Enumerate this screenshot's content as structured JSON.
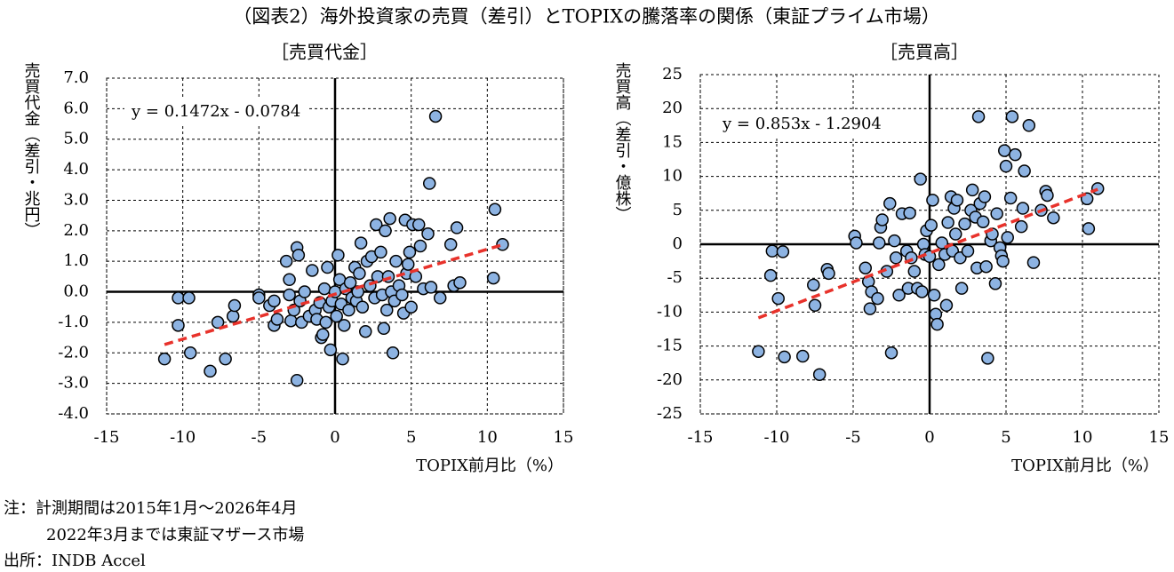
{
  "title": "（図表2）海外投資家の売買（差引）とTOPIXの騰落率の関係（東証プライム市場）",
  "notes": [
    "注：計測期間は2015年1月～2026年4月",
    "2022年3月までは東証マザース市場"
  ],
  "source": "出所：INDB Accel",
  "chart_data": [
    {
      "type": "scatter",
      "subtitle": "［売買代金］",
      "y_label": "売買代金（差引・兆円）",
      "x_label": "TOPIX前月比（%）",
      "color": "#8db3e2",
      "edge_color": "#000000",
      "grid": true,
      "xlim": [
        -15,
        15
      ],
      "xticks": [
        -15,
        -10,
        -5,
        0,
        5,
        10,
        15
      ],
      "ylim": [
        -4,
        7
      ],
      "yticks": [
        {
          "value": -4,
          "label": "-4.0"
        },
        {
          "value": -3,
          "label": "-3.0"
        },
        {
          "value": -2,
          "label": "-2.0"
        },
        {
          "value": -1,
          "label": "-1.0"
        },
        {
          "value": 0,
          "label": "0.0"
        },
        {
          "value": 1,
          "label": "1.0"
        },
        {
          "value": 2,
          "label": "2.0"
        },
        {
          "value": 3,
          "label": "3.0"
        },
        {
          "value": 4,
          "label": "4.0"
        },
        {
          "value": 5,
          "label": "5.0"
        },
        {
          "value": 6,
          "label": "6.0"
        },
        {
          "value": 7,
          "label": "7.0"
        }
      ],
      "trend": {
        "label": "y = 0.1472x - 0.0784",
        "slope": 0.1472,
        "intercept": -0.0784,
        "x_range": [
          -11.2,
          11
        ],
        "color": "#e8322b"
      },
      "x": [
        -11.2,
        -10.3,
        -10.3,
        -9.6,
        -9.5,
        -8.2,
        -7.7,
        -7.2,
        -6.7,
        -6.6,
        -5,
        -5,
        -4.3,
        -4,
        -4,
        -3.8,
        -3.2,
        -3,
        -3,
        -2.9,
        -2.7,
        -2.5,
        -2.4,
        -2.5,
        -2.3,
        -2.2,
        -2,
        -1.7,
        -1.5,
        -1.3,
        -1.2,
        -1,
        -0.9,
        -0.8,
        -0.7,
        -0.6,
        -0.5,
        -0.4,
        -0.3,
        -0.2,
        0,
        0.1,
        0.2,
        0.3,
        0.4,
        0.5,
        0.6,
        0.7,
        0.9,
        1,
        1.1,
        1.3,
        1.4,
        1.5,
        1.6,
        1.7,
        1.8,
        2,
        2.1,
        2.3,
        2.4,
        2.6,
        2.7,
        2.8,
        3,
        3.1,
        3.2,
        3.3,
        3.4,
        3.5,
        3.6,
        3.7,
        3.8,
        3.9,
        4,
        4.2,
        4.4,
        4.5,
        4.6,
        4.7,
        4.8,
        4.9,
        5,
        5.1,
        5.3,
        5.5,
        5.6,
        5.8,
        6.1,
        6.2,
        6.3,
        6.6,
        6.9,
        7.6,
        7.8,
        8,
        8.2,
        10.4,
        10.5,
        11
      ],
      "y": [
        -2.2,
        -0.2,
        -1.1,
        -0.2,
        -2,
        -2.6,
        -1,
        -2.2,
        -0.8,
        -0.45,
        -0.1,
        -0.2,
        -0.45,
        -0.3,
        -1.1,
        -0.9,
        1,
        0.4,
        -0.1,
        -0.95,
        -0.6,
        1.45,
        1.2,
        -2.9,
        -0.3,
        -1,
        0,
        -0.8,
        0.7,
        -0.6,
        -0.9,
        -0.35,
        -1.5,
        -1.4,
        0.1,
        -1,
        0.8,
        -0.5,
        -1.9,
        -0.3,
        0,
        -0.8,
        1.2,
        0.4,
        -0.4,
        -2.2,
        -1.1,
        0.1,
        -0.6,
        0.3,
        -0.2,
        0.8,
        -0.3,
        0,
        0.6,
        1.6,
        -0.5,
        -1.3,
        1,
        0.2,
        1.15,
        -0.2,
        2.2,
        0.5,
        1.3,
        -0.1,
        -1.2,
        2,
        -0.6,
        0.5,
        2.4,
        0,
        -2,
        -0.3,
        1,
        0.2,
        -0.1,
        -0.7,
        2.35,
        0.6,
        0.9,
        1.3,
        -0.5,
        2.2,
        0.5,
        2.2,
        1.5,
        0.1,
        1.9,
        3.55,
        0.15,
        5.75,
        -0.2,
        1.55,
        0.2,
        2.1,
        0.3,
        0.45,
        2.7,
        1.55
      ]
    },
    {
      "type": "scatter",
      "subtitle": "［売買高］",
      "y_label": "売買高（差引・億株）",
      "x_label": "TOPIX前月比（%）",
      "color": "#8db3e2",
      "edge_color": "#000000",
      "grid": true,
      "xlim": [
        -15,
        15
      ],
      "xticks": [
        -15,
        -10,
        -5,
        0,
        5,
        10,
        15
      ],
      "ylim": [
        -25,
        25
      ],
      "yticks": [
        -25,
        -20,
        -15,
        -10,
        -5,
        0,
        5,
        10,
        15,
        20,
        25
      ],
      "trend": {
        "label": "y = 0.853x - 1.2904",
        "slope": 0.853,
        "intercept": -1.2904,
        "x_range": [
          -11.2,
          11
        ],
        "color": "#e8322b"
      },
      "x": [
        -11.2,
        -10.4,
        -10.3,
        -9.9,
        -9.6,
        -9.5,
        -8.3,
        -7.6,
        -7.5,
        -7.2,
        -6.7,
        -6.6,
        -4.9,
        -4.8,
        -4.2,
        -4,
        -3.9,
        -3.8,
        -3.4,
        -3.3,
        -3.2,
        -3.1,
        -2.8,
        -2.6,
        -2.5,
        -2.3,
        -2.2,
        -2,
        -1.8,
        -1.5,
        -1.4,
        -1.3,
        -1.2,
        -1,
        -0.8,
        -0.6,
        -0.5,
        -0.4,
        -0.3,
        -0.2,
        0,
        0.1,
        0.2,
        0.3,
        0.4,
        0.5,
        0.6,
        0.8,
        1,
        1.1,
        1.2,
        1.4,
        1.5,
        1.6,
        1.7,
        1.8,
        2,
        2.1,
        2.3,
        2.5,
        2.7,
        2.8,
        3,
        3.1,
        3.2,
        3.3,
        3.5,
        3.6,
        3.7,
        3.8,
        4,
        4.1,
        4.3,
        4.4,
        4.6,
        4.7,
        4.8,
        4.9,
        5,
        5.1,
        5.3,
        5.4,
        5.6,
        6,
        6.1,
        6.2,
        6.5,
        6.8,
        7.3,
        7.6,
        7.7,
        8.1,
        10.3,
        10.4,
        11
      ],
      "y": [
        -15.8,
        -4.6,
        -1,
        -8,
        -1.1,
        -16.6,
        -16.5,
        -6,
        -9,
        -19.2,
        -3.7,
        -4.3,
        1.2,
        0.2,
        -3.5,
        -5.5,
        -9.5,
        -7,
        -8,
        0.2,
        2.5,
        3.6,
        -4,
        6,
        -16,
        0.5,
        -2,
        -7.5,
        4.5,
        -1,
        -6.5,
        4.6,
        -2,
        -4,
        -6.5,
        9.6,
        -7,
        0,
        -1.5,
        2,
        -1.8,
        2.8,
        6.5,
        -7.5,
        -10.3,
        -11.8,
        -3,
        0.2,
        -1.5,
        -9,
        3.2,
        7,
        -1,
        5.3,
        1.5,
        6.5,
        -2,
        -6.5,
        3,
        -1,
        5,
        8,
        4,
        -3.5,
        18.8,
        6,
        3.3,
        7,
        -3.3,
        -16.8,
        0.5,
        1.5,
        -5.8,
        4.5,
        -0.5,
        -1.7,
        -2.5,
        13.8,
        11.5,
        1,
        6.8,
        18.8,
        13.2,
        2.6,
        5.3,
        10.8,
        17.5,
        -2.7,
        5,
        7.8,
        7.2,
        3.9,
        6.7,
        2.3,
        8.2
      ]
    }
  ]
}
